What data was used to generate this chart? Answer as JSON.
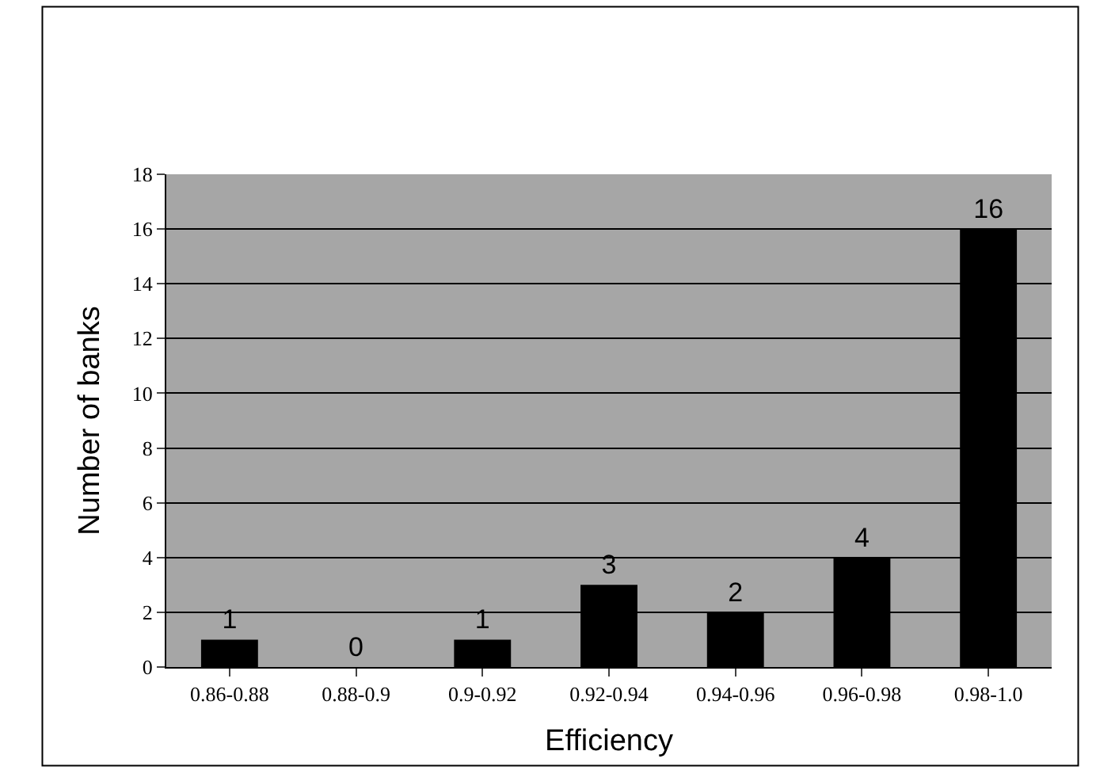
{
  "chart_data": {
    "type": "bar",
    "xlabel": "Efficiency",
    "ylabel": "Number of banks",
    "categories": [
      "0.86-0.88",
      "0.88-0.9",
      "0.9-0.92",
      "0.92-0.94",
      "0.94-0.96",
      "0.96-0.98",
      "0.98-1.0"
    ],
    "values": [
      1,
      0,
      1,
      3,
      2,
      4,
      16
    ],
    "color": "#000000",
    "data_labels": true,
    "ylim": [
      0,
      18
    ],
    "yticks": [
      0,
      2,
      4,
      6,
      8,
      10,
      12,
      14,
      16,
      18
    ],
    "grid": "y"
  }
}
